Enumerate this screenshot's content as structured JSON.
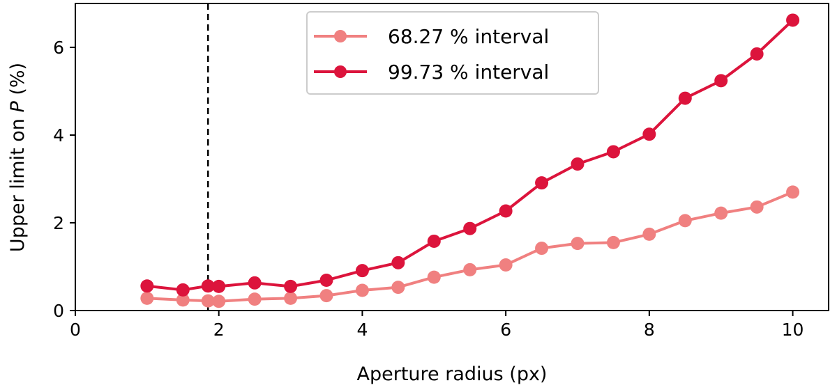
{
  "chart_data": {
    "type": "line",
    "title": "",
    "xlabel": "Aperture radius (px)",
    "ylabel_prefix": "Upper limit on ",
    "ylabel_symbol": "P",
    "ylabel_suffix": " (%)",
    "xlim": [
      0,
      10.5
    ],
    "ylim": [
      0,
      7
    ],
    "xticks": [
      0,
      2,
      4,
      6,
      8,
      10
    ],
    "yticks": [
      0,
      2,
      4,
      6
    ],
    "grid": false,
    "legend_position": "top-center",
    "reference_line": {
      "x": 1.85,
      "style": "dashed",
      "color": "#000000"
    },
    "x": [
      1,
      1.5,
      1.85,
      2,
      2.5,
      3,
      3.5,
      4,
      4.5,
      5,
      5.5,
      6,
      6.5,
      7,
      7.5,
      8,
      8.5,
      9,
      9.5,
      10
    ],
    "series": [
      {
        "name": "68.27 % interval",
        "color": "#f08080",
        "values": [
          0.28,
          0.24,
          0.22,
          0.21,
          0.26,
          0.28,
          0.34,
          0.46,
          0.53,
          0.76,
          0.93,
          1.04,
          1.42,
          1.53,
          1.55,
          1.74,
          2.05,
          2.22,
          2.36,
          2.7
        ]
      },
      {
        "name": "99.73 % interval",
        "color": "#dc143c",
        "values": [
          0.56,
          0.47,
          0.56,
          0.55,
          0.63,
          0.55,
          0.69,
          0.91,
          1.09,
          1.58,
          1.87,
          2.27,
          2.91,
          3.34,
          3.62,
          4.02,
          4.84,
          5.24,
          5.85,
          6.62
        ]
      }
    ]
  }
}
